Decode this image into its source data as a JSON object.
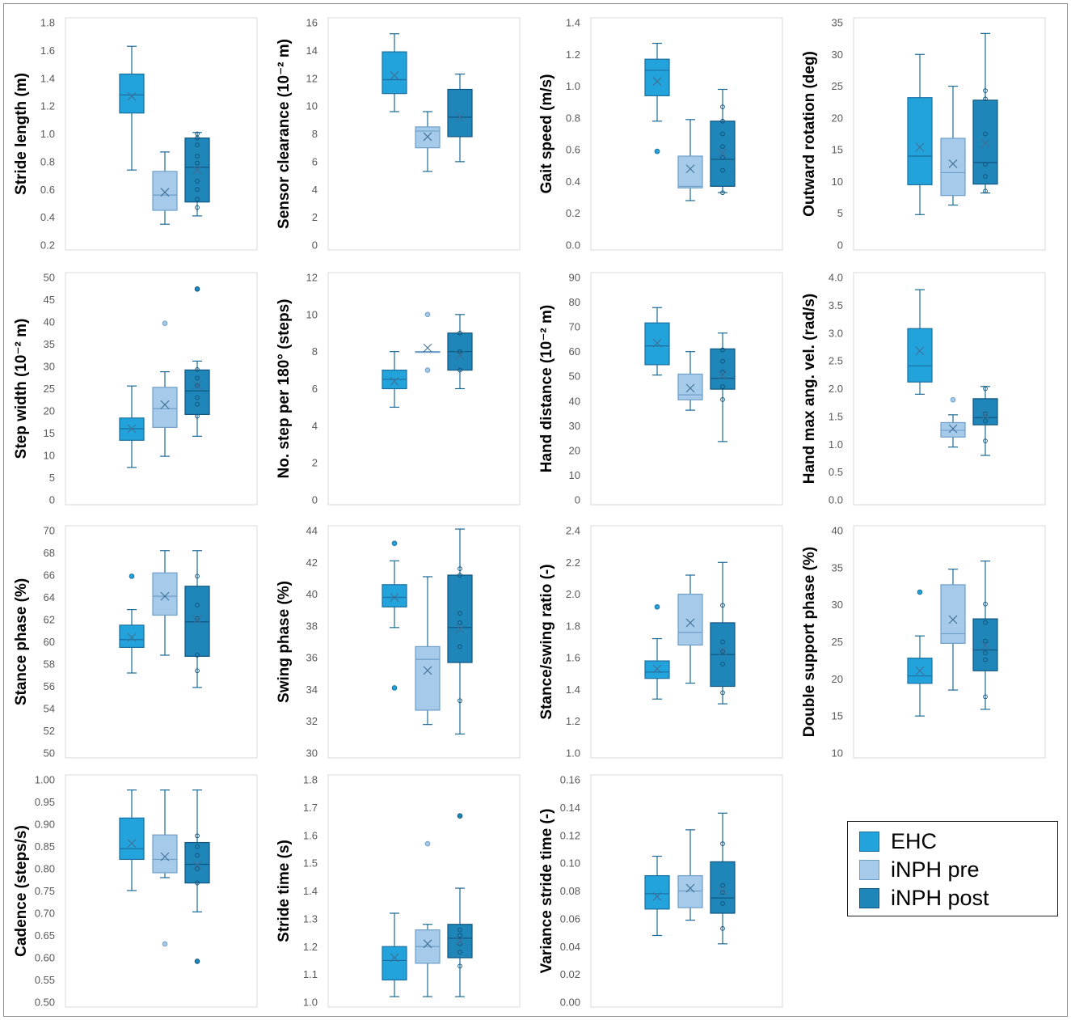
{
  "figure": {
    "legend": [
      {
        "label": "EHC",
        "fill": "#22a3dc",
        "edge": "#1a6fa0"
      },
      {
        "label": "iNPH pre",
        "fill": "#a6cbea",
        "edge": "#6f9ec9"
      },
      {
        "label": "iNPH post",
        "fill": "#1f86b9",
        "edge": "#0f5580"
      }
    ],
    "colors": {
      "whisker": "#1b6a96",
      "frame": "#d9d9d9",
      "tick_text": "#595959"
    }
  },
  "chart_data": [
    {
      "type": "box",
      "ylabel": "Stride length (m)",
      "ylim": [
        0.2,
        1.8
      ],
      "yticks": [
        "0.2",
        "0.4",
        "0.6",
        "0.8",
        "1.0",
        "1.2",
        "1.4",
        "1.6",
        "1.8"
      ],
      "groups": [
        {
          "name": "EHC",
          "min": 0.74,
          "q1": 1.15,
          "median": 1.28,
          "q3": 1.43,
          "max": 1.63,
          "mean": 1.27,
          "outliers": [],
          "points": []
        },
        {
          "name": "iNPH pre",
          "min": 0.35,
          "q1": 0.45,
          "median": 0.56,
          "q3": 0.73,
          "max": 0.87,
          "mean": 0.58,
          "outliers": [],
          "points": []
        },
        {
          "name": "iNPH post",
          "min": 0.41,
          "q1": 0.51,
          "median": 0.76,
          "q3": 0.97,
          "max": 1.01,
          "mean": 0.74,
          "outliers": [],
          "points": [
            0.47,
            0.53,
            0.6,
            0.66,
            0.79,
            0.84,
            0.92,
            0.97,
            1.0
          ]
        }
      ]
    },
    {
      "type": "box",
      "ylabel": "Sensor clearance (10⁻² m)",
      "ylim": [
        0,
        16
      ],
      "yticks": [
        "0",
        "2",
        "4",
        "6",
        "8",
        "10",
        "12",
        "14",
        "16"
      ],
      "groups": [
        {
          "name": "EHC",
          "min": 9.6,
          "q1": 10.9,
          "median": 11.9,
          "q3": 13.9,
          "max": 15.2,
          "mean": 12.2,
          "outliers": [],
          "points": []
        },
        {
          "name": "iNPH pre",
          "min": 5.3,
          "q1": 7.0,
          "median": 8.2,
          "q3": 8.5,
          "max": 9.6,
          "mean": 7.8,
          "outliers": [],
          "points": []
        },
        {
          "name": "iNPH post",
          "min": 6.0,
          "q1": 7.8,
          "median": 9.2,
          "q3": 11.2,
          "max": 12.3,
          "mean": 9.2,
          "outliers": [],
          "points": []
        }
      ]
    },
    {
      "type": "box",
      "ylabel": "Gait speed (m/s)",
      "ylim": [
        0.0,
        1.4
      ],
      "yticks": [
        "0.0",
        "0.2",
        "0.4",
        "0.6",
        "0.8",
        "1.0",
        "1.2",
        "1.4"
      ],
      "groups": [
        {
          "name": "EHC",
          "min": 0.78,
          "q1": 0.94,
          "median": 1.1,
          "q3": 1.17,
          "max": 1.27,
          "mean": 1.03,
          "outliers": [
            0.59
          ],
          "points": []
        },
        {
          "name": "iNPH pre",
          "min": 0.28,
          "q1": 0.36,
          "median": 0.37,
          "q3": 0.56,
          "max": 0.79,
          "mean": 0.48,
          "outliers": [],
          "points": []
        },
        {
          "name": "iNPH post",
          "min": 0.33,
          "q1": 0.37,
          "median": 0.54,
          "q3": 0.78,
          "max": 0.98,
          "mean": 0.58,
          "outliers": [],
          "points": [
            0.33,
            0.47,
            0.55,
            0.62,
            0.7,
            0.78,
            0.87
          ]
        }
      ]
    },
    {
      "type": "box",
      "ylabel": "Outward rotation (deg)",
      "ylim": [
        0,
        35
      ],
      "yticks": [
        "0",
        "5",
        "10",
        "15",
        "20",
        "25",
        "30",
        "35"
      ],
      "groups": [
        {
          "name": "EHC",
          "min": 4.8,
          "q1": 9.5,
          "median": 14.0,
          "q3": 23.2,
          "max": 30.0,
          "mean": 15.4,
          "outliers": [],
          "points": []
        },
        {
          "name": "iNPH pre",
          "min": 6.3,
          "q1": 7.8,
          "median": 11.4,
          "q3": 16.8,
          "max": 25.0,
          "mean": 12.8,
          "outliers": [],
          "points": []
        },
        {
          "name": "iNPH post",
          "min": 8.2,
          "q1": 9.6,
          "median": 13.0,
          "q3": 22.8,
          "max": 33.3,
          "mean": 16.0,
          "outliers": [],
          "points": [
            8.5,
            10.8,
            12.7,
            17.5,
            23.0,
            24.3
          ]
        }
      ]
    },
    {
      "type": "box",
      "ylabel": "Step width (10⁻² m)",
      "ylim": [
        0,
        50
      ],
      "yticks": [
        "0",
        "5",
        "10",
        "15",
        "20",
        "25",
        "30",
        "35",
        "40",
        "45",
        "50"
      ],
      "groups": [
        {
          "name": "EHC",
          "min": 7.3,
          "q1": 13.4,
          "median": 16.0,
          "q3": 18.4,
          "max": 25.6,
          "mean": 16.0,
          "outliers": [],
          "points": []
        },
        {
          "name": "iNPH pre",
          "min": 9.8,
          "q1": 16.3,
          "median": 20.5,
          "q3": 25.3,
          "max": 28.8,
          "mean": 21.4,
          "outliers": [
            39.7
          ],
          "points": []
        },
        {
          "name": "iNPH post",
          "min": 14.3,
          "q1": 19.2,
          "median": 24.5,
          "q3": 29.2,
          "max": 31.2,
          "mean": 25.8,
          "outliers": [
            47.4
          ],
          "points": [
            18.8,
            21.5,
            23.0,
            25.7,
            27.4,
            29.3
          ]
        }
      ]
    },
    {
      "type": "box",
      "ylabel": "No. step per 180° (steps)",
      "ylim": [
        0,
        12
      ],
      "yticks": [
        "0",
        "2",
        "4",
        "6",
        "8",
        "10",
        "12"
      ],
      "groups": [
        {
          "name": "EHC",
          "min": 5.0,
          "q1": 6.0,
          "median": 6.5,
          "q3": 7.0,
          "max": 8.0,
          "mean": 6.4,
          "outliers": [],
          "points": []
        },
        {
          "name": "iNPH pre",
          "min": 8.0,
          "q1": 8.0,
          "median": 8.0,
          "q3": 8.0,
          "max": 8.0,
          "mean": 8.2,
          "outliers": [
            7.0,
            10.0
          ],
          "points": []
        },
        {
          "name": "iNPH post",
          "min": 6.0,
          "q1": 7.0,
          "median": 8.0,
          "q3": 9.0,
          "max": 10.0,
          "mean": 7.8,
          "outliers": [],
          "points": [
            7.0,
            8.0,
            9.0
          ]
        }
      ]
    },
    {
      "type": "box",
      "ylabel": "Hand distance (10⁻² m)",
      "ylim": [
        0,
        90
      ],
      "yticks": [
        "0",
        "10",
        "20",
        "30",
        "40",
        "50",
        "60",
        "70",
        "80",
        "90"
      ],
      "groups": [
        {
          "name": "EHC",
          "min": 50.5,
          "q1": 54.7,
          "median": 62.3,
          "q3": 71.6,
          "max": 77.8,
          "mean": 63.4,
          "outliers": [],
          "points": []
        },
        {
          "name": "iNPH pre",
          "min": 36.3,
          "q1": 40.5,
          "median": 42.5,
          "q3": 50.9,
          "max": 60.0,
          "mean": 45.2,
          "outliers": [],
          "points": []
        },
        {
          "name": "iNPH post",
          "min": 23.6,
          "q1": 44.8,
          "median": 49.2,
          "q3": 61.1,
          "max": 67.5,
          "mean": 50.5,
          "outliers": [],
          "points": [
            40.6,
            45.8,
            51.7,
            56.1,
            60.7
          ]
        }
      ]
    },
    {
      "type": "box",
      "ylabel": "Hand max ang. vel. (rad/s)",
      "ylim": [
        0.0,
        4.0
      ],
      "yticks": [
        "0.0",
        "0.5",
        "1.0",
        "1.5",
        "2.0",
        "2.5",
        "3.0",
        "3.5",
        "4.0"
      ],
      "groups": [
        {
          "name": "EHC",
          "min": 1.9,
          "q1": 2.12,
          "median": 2.41,
          "q3": 3.08,
          "max": 3.78,
          "mean": 2.68,
          "outliers": [],
          "points": []
        },
        {
          "name": "iNPH pre",
          "min": 0.95,
          "q1": 1.13,
          "median": 1.25,
          "q3": 1.39,
          "max": 1.53,
          "mean": 1.28,
          "outliers": [
            1.8
          ],
          "points": []
        },
        {
          "name": "iNPH post",
          "min": 0.8,
          "q1": 1.35,
          "median": 1.48,
          "q3": 1.82,
          "max": 2.04,
          "mean": 1.52,
          "outliers": [],
          "points": [
            1.06,
            1.42,
            1.55,
            2.0
          ]
        }
      ]
    },
    {
      "type": "box",
      "ylabel": "Stance phase (%)",
      "ylim": [
        50,
        70
      ],
      "yticks": [
        "50",
        "52",
        "54",
        "56",
        "58",
        "60",
        "62",
        "64",
        "66",
        "68",
        "70"
      ],
      "groups": [
        {
          "name": "EHC",
          "min": 57.2,
          "q1": 59.5,
          "median": 60.2,
          "q3": 61.5,
          "max": 62.9,
          "mean": 60.4,
          "outliers": [
            65.9
          ],
          "points": []
        },
        {
          "name": "iNPH pre",
          "min": 58.8,
          "q1": 62.4,
          "median": 64.1,
          "q3": 66.2,
          "max": 68.2,
          "mean": 64.1,
          "outliers": [],
          "points": []
        },
        {
          "name": "iNPH post",
          "min": 55.9,
          "q1": 58.7,
          "median": 61.8,
          "q3": 65.0,
          "max": 68.2,
          "mean": 62.0,
          "outliers": [],
          "points": [
            57.4,
            58.8,
            62.1,
            63.3,
            65.9
          ]
        }
      ]
    },
    {
      "type": "box",
      "ylabel": "Swing phase (%)",
      "ylim": [
        30,
        44
      ],
      "yticks": [
        "30",
        "32",
        "34",
        "36",
        "38",
        "40",
        "42",
        "44"
      ],
      "groups": [
        {
          "name": "EHC",
          "min": 37.9,
          "q1": 39.2,
          "median": 39.8,
          "q3": 40.6,
          "max": 42.1,
          "mean": 39.8,
          "outliers": [
            34.1,
            43.2
          ],
          "points": []
        },
        {
          "name": "iNPH pre",
          "min": 31.8,
          "q1": 32.7,
          "median": 35.9,
          "q3": 36.7,
          "max": 41.1,
          "mean": 35.2,
          "outliers": [],
          "points": []
        },
        {
          "name": "iNPH post",
          "min": 31.2,
          "q1": 35.7,
          "median": 37.9,
          "q3": 41.2,
          "max": 44.1,
          "mean": 37.8,
          "outliers": [],
          "points": [
            33.3,
            36.7,
            38.2,
            38.8,
            41.2,
            41.6
          ]
        }
      ]
    },
    {
      "type": "box",
      "ylabel": "Stance/swing ratio (-)",
      "ylim": [
        1.0,
        2.4
      ],
      "yticks": [
        "1.0",
        "1.2",
        "1.4",
        "1.6",
        "1.8",
        "2.0",
        "2.2",
        "2.4"
      ],
      "groups": [
        {
          "name": "EHC",
          "min": 1.34,
          "q1": 1.47,
          "median": 1.51,
          "q3": 1.58,
          "max": 1.72,
          "mean": 1.53,
          "outliers": [
            1.92
          ],
          "points": []
        },
        {
          "name": "iNPH pre",
          "min": 1.44,
          "q1": 1.68,
          "median": 1.76,
          "q3": 2.0,
          "max": 2.12,
          "mean": 1.82,
          "outliers": [],
          "points": []
        },
        {
          "name": "iNPH post",
          "min": 1.31,
          "q1": 1.42,
          "median": 1.62,
          "q3": 1.82,
          "max": 2.2,
          "mean": 1.64,
          "outliers": [],
          "points": [
            1.38,
            1.56,
            1.64,
            1.7,
            1.93
          ]
        }
      ]
    },
    {
      "type": "box",
      "ylabel": "Double support phase (%)",
      "ylim": [
        10,
        40
      ],
      "yticks": [
        "10",
        "15",
        "20",
        "25",
        "30",
        "35",
        "40"
      ],
      "groups": [
        {
          "name": "EHC",
          "min": 15.0,
          "q1": 19.4,
          "median": 20.4,
          "q3": 22.8,
          "max": 25.8,
          "mean": 21.1,
          "outliers": [
            31.7
          ],
          "points": []
        },
        {
          "name": "iNPH pre",
          "min": 18.5,
          "q1": 24.8,
          "median": 26.1,
          "q3": 32.7,
          "max": 34.8,
          "mean": 28.0,
          "outliers": [],
          "points": []
        },
        {
          "name": "iNPH post",
          "min": 15.9,
          "q1": 21.1,
          "median": 23.9,
          "q3": 28.1,
          "max": 35.9,
          "mean": 24.5,
          "outliers": [],
          "points": [
            17.6,
            22.6,
            23.5,
            25.1,
            27.6,
            30.1
          ]
        }
      ]
    },
    {
      "type": "box",
      "ylabel": "Cadence (steps/s)",
      "ylim": [
        0.5,
        1.0
      ],
      "yticks": [
        "0.50",
        "0.55",
        "0.60",
        "0.65",
        "0.70",
        "0.75",
        "0.80",
        "0.85",
        "0.90",
        "0.95",
        "1.00"
      ],
      "groups": [
        {
          "name": "EHC",
          "min": 0.751,
          "q1": 0.821,
          "median": 0.845,
          "q3": 0.914,
          "max": 0.977,
          "mean": 0.857,
          "outliers": [],
          "points": []
        },
        {
          "name": "iNPH pre",
          "min": 0.78,
          "q1": 0.791,
          "median": 0.821,
          "q3": 0.876,
          "max": 0.977,
          "mean": 0.827,
          "outliers": [
            0.631
          ],
          "points": []
        },
        {
          "name": "iNPH post",
          "min": 0.703,
          "q1": 0.768,
          "median": 0.81,
          "q3": 0.859,
          "max": 0.977,
          "mean": 0.808,
          "outliers": [
            0.592
          ],
          "points": [
            0.768,
            0.8,
            0.83,
            0.85,
            0.874
          ]
        }
      ]
    },
    {
      "type": "box",
      "ylabel": "Stride time (s)",
      "ylim": [
        1.0,
        1.8
      ],
      "yticks": [
        "1.0",
        "1.1",
        "1.2",
        "1.3",
        "1.4",
        "1.5",
        "1.6",
        "1.7",
        "1.8"
      ],
      "groups": [
        {
          "name": "EHC",
          "min": 1.02,
          "q1": 1.08,
          "median": 1.15,
          "q3": 1.2,
          "max": 1.32,
          "mean": 1.16,
          "outliers": [],
          "points": []
        },
        {
          "name": "iNPH pre",
          "min": 1.02,
          "q1": 1.14,
          "median": 1.2,
          "q3": 1.26,
          "max": 1.28,
          "mean": 1.21,
          "outliers": [
            1.57
          ],
          "points": []
        },
        {
          "name": "iNPH post",
          "min": 1.02,
          "q1": 1.16,
          "median": 1.23,
          "q3": 1.28,
          "max": 1.41,
          "mean": 1.22,
          "outliers": [
            1.67
          ],
          "points": [
            1.13,
            1.18,
            1.21,
            1.24,
            1.26
          ]
        }
      ]
    },
    {
      "type": "box",
      "ylabel": "Variance stride time (-)",
      "ylim": [
        0.0,
        0.16
      ],
      "yticks": [
        "0.00",
        "0.02",
        "0.04",
        "0.06",
        "0.08",
        "0.10",
        "0.12",
        "0.14",
        "0.16"
      ],
      "groups": [
        {
          "name": "EHC",
          "min": 0.048,
          "q1": 0.067,
          "median": 0.078,
          "q3": 0.091,
          "max": 0.105,
          "mean": 0.076,
          "outliers": [],
          "points": []
        },
        {
          "name": "iNPH pre",
          "min": 0.059,
          "q1": 0.068,
          "median": 0.08,
          "q3": 0.091,
          "max": 0.124,
          "mean": 0.082,
          "outliers": [],
          "points": []
        },
        {
          "name": "iNPH post",
          "min": 0.042,
          "q1": 0.064,
          "median": 0.075,
          "q3": 0.101,
          "max": 0.136,
          "mean": 0.08,
          "outliers": [],
          "points": [
            0.053,
            0.071,
            0.079,
            0.084,
            0.114
          ]
        }
      ]
    }
  ]
}
